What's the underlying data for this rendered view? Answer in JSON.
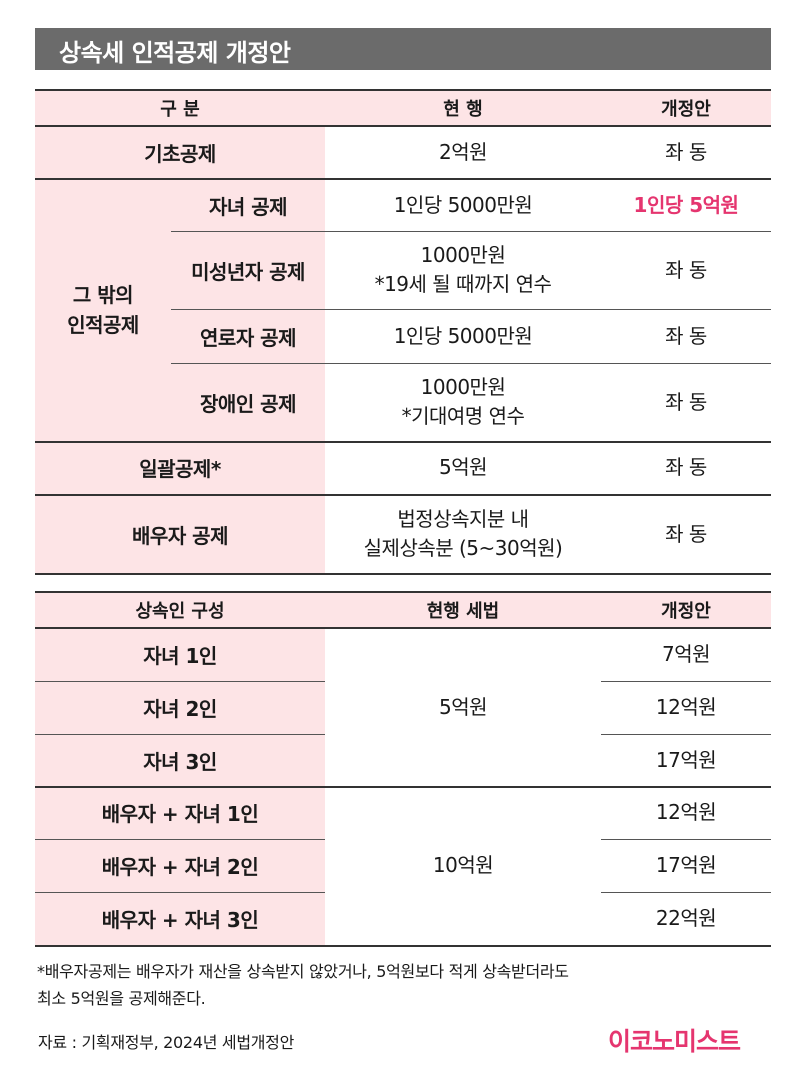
{
  "title": "상속세 인적공제 개정안",
  "table1": {
    "headers": [
      "구 분",
      "현 행",
      "개정안"
    ],
    "basic": {
      "label": "기초공제",
      "current": "2억원",
      "proposed": "좌 동"
    },
    "group_label": "그 밖의\n인적공제",
    "sub_rows": [
      {
        "label": "자녀 공제",
        "current": "1인당 5000만원",
        "proposed": "1인당 5억원"
      },
      {
        "label": "미성년자 공제",
        "current": "1000만원\n*19세 될 때까지 연수",
        "proposed": "좌 동"
      },
      {
        "label": "연로자 공제",
        "current": "1인당 5000만원",
        "proposed": "좌 동"
      },
      {
        "label": "장애인 공제",
        "current": "1000만원\n*기대여명 연수",
        "proposed": "좌 동"
      }
    ],
    "lump": {
      "label": "일괄공제*",
      "current": "5억원",
      "proposed": "좌 동"
    },
    "spouse": {
      "label": "배우자 공제",
      "current": "법정상속지분 내\n실제상속분 (5~30억원)",
      "proposed": "좌 동"
    }
  },
  "table2": {
    "headers": [
      "상속인 구성",
      "현행 세법",
      "개정안"
    ],
    "current_group1": "5억원",
    "current_group2": "10억원",
    "rows": [
      {
        "label": "자녀 1인",
        "proposed": "7억원"
      },
      {
        "label": "자녀 2인",
        "proposed": "12억원"
      },
      {
        "label": "자녀 3인",
        "proposed": "17억원"
      },
      {
        "label": "배우자 + 자녀 1인",
        "proposed": "12억원"
      },
      {
        "label": "배우자 + 자녀 2인",
        "proposed": "17억원"
      },
      {
        "label": "배우자 + 자녀 3인",
        "proposed": "22억원"
      }
    ]
  },
  "footnote": "*배우자공제는 배우자가 재산을 상속받지 않았거나, 5억원보다 적게 상속받더라도\n 최소 5억원을 공제해준다.",
  "source": "자료 : 기획재정부, 2024년 세법개정안",
  "logo": "이코노미스트",
  "colors": {
    "accent": "#e5356f",
    "pink_bg": "#fde4e6",
    "title_bg": "#6b6b6b"
  }
}
